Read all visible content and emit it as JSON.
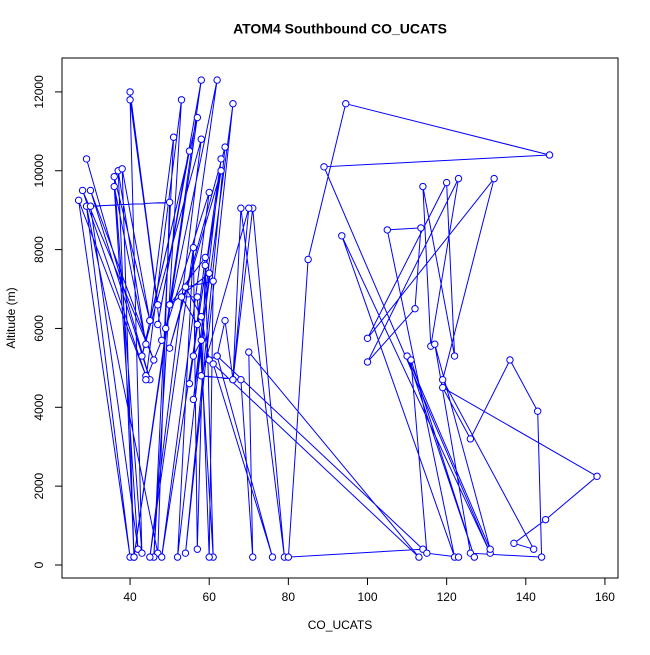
{
  "chart_data": {
    "type": "line",
    "markers": true,
    "title": "ATOM4 Southbound CO_UCATS",
    "x_label": "CO_UCATS",
    "y_label": "Altitude (m)",
    "color": "#0000ff",
    "x": [
      29,
      45,
      30,
      46,
      28,
      44,
      27,
      40,
      29,
      47,
      50,
      30,
      42,
      36,
      44,
      37,
      41,
      38,
      45,
      36,
      43,
      40,
      47,
      40,
      48,
      44,
      53,
      46,
      51,
      45,
      57,
      41,
      58,
      47,
      55,
      43,
      58,
      45,
      62,
      49,
      60,
      48,
      63,
      50,
      64,
      54,
      66,
      56,
      63,
      55,
      59,
      50,
      60,
      52,
      56,
      57,
      59,
      61,
      57,
      53,
      57,
      56,
      58,
      60,
      61,
      54,
      58,
      60,
      62,
      64,
      66,
      68,
      79,
      71,
      66,
      70,
      58,
      68,
      71,
      70,
      113,
      61,
      76,
      62,
      114,
      80,
      85,
      94.5,
      146,
      89,
      131,
      93.5,
      122,
      105,
      113.5,
      112,
      100,
      123,
      116,
      114,
      122,
      120,
      100,
      132,
      119,
      142,
      137,
      145,
      158,
      119,
      126,
      136,
      143,
      144,
      126,
      117,
      131,
      110,
      127,
      111,
      115,
      123
    ],
    "values": [
      10300,
      4700,
      9500,
      5200,
      9500,
      4800,
      9250,
      200,
      9100,
      300,
      9200,
      9100,
      400,
      9600,
      5600,
      10000,
      200,
      10050,
      6200,
      9850,
      300,
      11800,
      6600,
      12000,
      5700,
      4700,
      11800,
      200,
      10850,
      6200,
      11350,
      200,
      12300,
      6100,
      10500,
      5300,
      10800,
      200,
      12300,
      6000,
      9450,
      200,
      10000,
      5500,
      10600,
      300,
      11700,
      4200,
      10300,
      4600,
      7800,
      6600,
      7400,
      200,
      8050,
      400,
      7600,
      200,
      6800,
      6800,
      6100,
      5300,
      5700,
      200,
      7200,
      7050,
      6300,
      5200,
      5300,
      6200,
      4700,
      9050,
      200,
      9050,
      4700,
      9050,
      4800,
      4700,
      200,
      5400,
      200,
      5100,
      200,
      5300,
      400,
      200,
      7750,
      11700,
      10400,
      10100,
      300,
      8350,
      200,
      8500,
      8550,
      6500,
      5150,
      9800,
      5550,
      9600,
      5300,
      9700,
      5750,
      9800,
      4700,
      400,
      550,
      1150,
      2250,
      4500,
      3200,
      5200,
      3900,
      200,
      300,
      5600,
      400,
      5300,
      200,
      5200,
      300,
      200
    ],
    "xlim": [
      22.8,
      163.3
    ],
    "ylim": [
      -330,
      12860
    ],
    "xticks": [
      40,
      60,
      80,
      100,
      120,
      140,
      160
    ],
    "yticks": [
      0,
      2000,
      4000,
      6000,
      8000,
      10000,
      12000
    ]
  }
}
